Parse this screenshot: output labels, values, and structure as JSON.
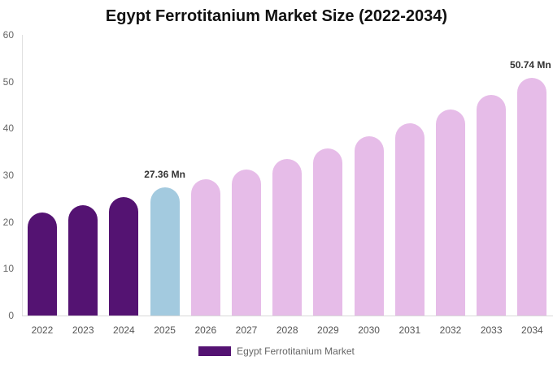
{
  "title": "Egypt Ferrotitanium Market Size (2022-2034)",
  "legend": {
    "label": "Egypt Ferrotitanium Market",
    "color": "#541372"
  },
  "colors": {
    "historical": "#541372",
    "current": "#a3cadf",
    "forecast": "#e6bce8"
  },
  "chart_data": {
    "type": "bar",
    "title": "Egypt Ferrotitanium Market Size (2022-2034)",
    "xlabel": "",
    "ylabel": "",
    "ylim": [
      0,
      60
    ],
    "yticks": [
      0,
      10,
      20,
      30,
      40,
      50,
      60
    ],
    "grid": false,
    "legend_position": "bottom",
    "categories": [
      "2022",
      "2023",
      "2024",
      "2025",
      "2026",
      "2027",
      "2028",
      "2029",
      "2030",
      "2031",
      "2032",
      "2033",
      "2034"
    ],
    "series": [
      {
        "name": "Egypt Ferrotitanium Market",
        "values": [
          22.0,
          23.6,
          25.3,
          27.36,
          29.1,
          31.2,
          33.4,
          35.7,
          38.3,
          41.1,
          44.0,
          47.1,
          50.74
        ]
      }
    ],
    "annotations": [
      {
        "category": "2025",
        "text": "27.36 Mn"
      },
      {
        "category": "2034",
        "text": "50.74 Mn"
      }
    ]
  }
}
